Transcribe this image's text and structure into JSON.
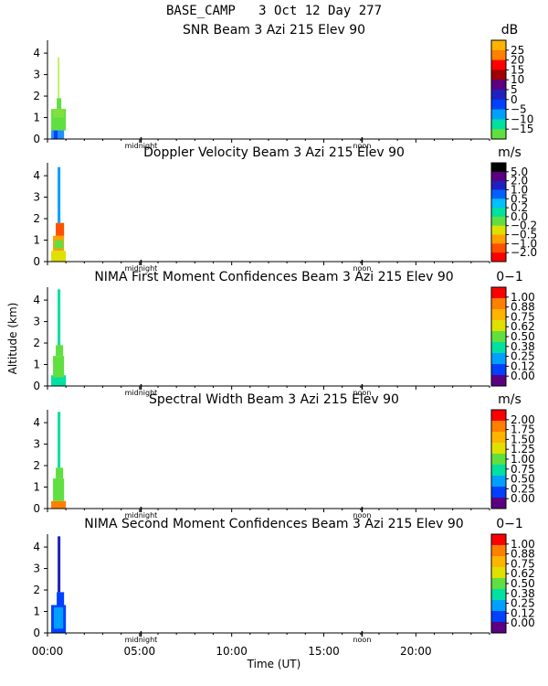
{
  "header": {
    "site": "BASE_CAMP",
    "date": "3 Oct 12 Day 277"
  },
  "x_axis": {
    "label": "Time (UT)",
    "range_hours": [
      0,
      24
    ],
    "ticks": [
      {
        "hour": 0,
        "label": "00:00"
      },
      {
        "hour": 5,
        "label": "05:00"
      },
      {
        "hour": 10,
        "label": "10:00"
      },
      {
        "hour": 15,
        "label": "15:00"
      },
      {
        "hour": 20,
        "label": "20:00"
      }
    ],
    "markers": [
      {
        "hour": 5.08,
        "label": "midnight"
      },
      {
        "hour": 17.08,
        "label": "noon"
      }
    ]
  },
  "y_axis": {
    "label": "Altitude (km)",
    "range_km": [
      0,
      4.6
    ],
    "ticks": [
      0,
      1,
      2,
      3,
      4
    ]
  },
  "chart_data": [
    {
      "type": "heatmap",
      "title": "SNR Beam 3 Azi 215 Elev 90",
      "unit": "dB",
      "colorbar": {
        "labels": [
          "25",
          "20",
          "15",
          "10",
          "5",
          "0",
          "−5",
          "−10",
          "−15"
        ],
        "colors": [
          "#ffb400",
          "#ff8000",
          "#ff0000",
          "#a00000",
          "#5a0080",
          "#2020c0",
          "#0040ff",
          "#00a0ff",
          "#00e0a0",
          "#60e040"
        ]
      },
      "data": [
        {
          "t": [
            0.2,
            0.9
          ],
          "alt": [
            0.0,
            0.45
          ],
          "color": "#2090ff"
        },
        {
          "t": [
            0.35,
            0.55
          ],
          "alt": [
            0.0,
            0.45
          ],
          "color": "#0040ff"
        },
        {
          "t": [
            0.2,
            1.0
          ],
          "alt": [
            0.4,
            1.4
          ],
          "color": "#60e040"
        },
        {
          "t": [
            0.3,
            0.9
          ],
          "alt": [
            1.0,
            1.4
          ],
          "color": "#80e040"
        },
        {
          "t": [
            0.5,
            0.75
          ],
          "alt": [
            1.4,
            1.9
          ],
          "color": "#60e040"
        },
        {
          "t": [
            0.55,
            0.65
          ],
          "alt": [
            1.9,
            3.8
          ],
          "color": "#c0f060"
        }
      ]
    },
    {
      "type": "heatmap",
      "title": "Doppler Velocity Beam 3 Azi 215 Elev 90",
      "unit": "m/s",
      "colorbar": {
        "labels": [
          "5.0",
          "2.0",
          "1.0",
          "0.5",
          "0.2",
          "0.0",
          "−0.2",
          "−0.5",
          "−1.0",
          "−2.0"
        ],
        "colors": [
          "#000000",
          "#5a0080",
          "#2020c0",
          "#0060ff",
          "#00c0ff",
          "#00e0a0",
          "#60e040",
          "#e0e000",
          "#ffa000",
          "#ff5000",
          "#ff0000"
        ]
      },
      "data": [
        {
          "t": [
            0.2,
            1.0
          ],
          "alt": [
            0.0,
            0.5
          ],
          "color": "#e0e000"
        },
        {
          "t": [
            0.3,
            0.9
          ],
          "alt": [
            0.5,
            1.2
          ],
          "color": "#ffa000"
        },
        {
          "t": [
            0.4,
            0.85
          ],
          "alt": [
            0.6,
            1.0
          ],
          "color": "#60e040"
        },
        {
          "t": [
            0.45,
            0.9
          ],
          "alt": [
            1.2,
            1.8
          ],
          "color": "#ff5000"
        },
        {
          "t": [
            0.55,
            0.7
          ],
          "alt": [
            1.8,
            4.4
          ],
          "color": "#00a0ff"
        }
      ]
    },
    {
      "type": "heatmap",
      "title": "NIMA First Moment Confidences Beam 3 Azi 215 Elev 90",
      "unit": "0−1",
      "colorbar": {
        "labels": [
          "1.00",
          "0.88",
          "0.75",
          "0.62",
          "0.50",
          "0.38",
          "0.25",
          "0.12",
          "0.00"
        ],
        "colors": [
          "#ff0000",
          "#ff8000",
          "#ffb400",
          "#e0e000",
          "#60e040",
          "#00e0a0",
          "#00a0ff",
          "#0040ff",
          "#5a0080"
        ]
      },
      "data": [
        {
          "t": [
            0.2,
            1.0
          ],
          "alt": [
            0.0,
            0.5
          ],
          "color": "#00e0a0"
        },
        {
          "t": [
            0.3,
            0.9
          ],
          "alt": [
            0.4,
            1.4
          ],
          "color": "#60e040"
        },
        {
          "t": [
            0.45,
            0.85
          ],
          "alt": [
            1.4,
            1.9
          ],
          "color": "#60e040"
        },
        {
          "t": [
            0.55,
            0.7
          ],
          "alt": [
            1.9,
            4.5
          ],
          "color": "#00e0a0"
        }
      ]
    },
    {
      "type": "heatmap",
      "title": "Spectral Width Beam 3 Azi 215 Elev 90",
      "unit": "m/s",
      "colorbar": {
        "labels": [
          "2.00",
          "1.75",
          "1.50",
          "1.25",
          "1.00",
          "0.75",
          "0.50",
          "0.25",
          "0.00"
        ],
        "colors": [
          "#ff0000",
          "#ff8000",
          "#ffb400",
          "#e0e000",
          "#60e040",
          "#00e0a0",
          "#00a0ff",
          "#0040ff",
          "#5a0080"
        ]
      },
      "data": [
        {
          "t": [
            0.2,
            1.0
          ],
          "alt": [
            0.0,
            0.35
          ],
          "color": "#ff8000"
        },
        {
          "t": [
            0.3,
            0.9
          ],
          "alt": [
            0.35,
            1.4
          ],
          "color": "#60e040"
        },
        {
          "t": [
            0.45,
            0.85
          ],
          "alt": [
            1.4,
            1.9
          ],
          "color": "#60e040"
        },
        {
          "t": [
            0.55,
            0.7
          ],
          "alt": [
            1.9,
            4.5
          ],
          "color": "#00e0a0"
        }
      ]
    },
    {
      "type": "heatmap",
      "title": "NIMA Second Moment Confidences Beam 3 Azi 215 Elev 90",
      "unit": "0−1",
      "colorbar": {
        "labels": [
          "1.00",
          "0.88",
          "0.75",
          "0.62",
          "0.50",
          "0.38",
          "0.25",
          "0.12",
          "0.00"
        ],
        "colors": [
          "#ff0000",
          "#ff8000",
          "#ffb400",
          "#e0e000",
          "#60e040",
          "#00e0a0",
          "#00a0ff",
          "#0040ff",
          "#5a0080"
        ]
      },
      "data": [
        {
          "t": [
            0.2,
            1.0
          ],
          "alt": [
            0.0,
            1.3
          ],
          "color": "#0040ff"
        },
        {
          "t": [
            0.35,
            0.85
          ],
          "alt": [
            0.2,
            1.2
          ],
          "color": "#00a0ff"
        },
        {
          "t": [
            0.5,
            0.9
          ],
          "alt": [
            1.2,
            1.9
          ],
          "color": "#0040ff"
        },
        {
          "t": [
            0.55,
            0.7
          ],
          "alt": [
            1.9,
            4.5
          ],
          "color": "#2020c0"
        }
      ]
    }
  ]
}
